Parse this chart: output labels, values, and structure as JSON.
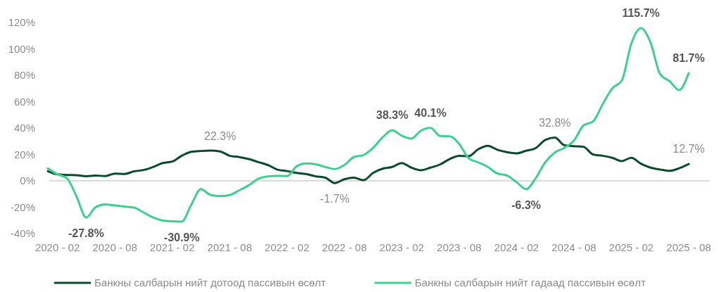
{
  "chart_data": {
    "type": "line",
    "categories": [
      null,
      "2020 - 02",
      null,
      null,
      null,
      null,
      null,
      "2020 - 08",
      null,
      null,
      null,
      null,
      null,
      "2021 - 02",
      null,
      null,
      null,
      null,
      null,
      "2021 - 08",
      null,
      null,
      null,
      null,
      null,
      "2022 - 02",
      null,
      null,
      null,
      null,
      null,
      "2022 - 08",
      null,
      null,
      null,
      null,
      null,
      "2023 - 02",
      null,
      null,
      null,
      null,
      null,
      "2023 - 08",
      null,
      null,
      null,
      null,
      null,
      "2024 - 02",
      null,
      null,
      null,
      null,
      null,
      "2024 - 08",
      null,
      null,
      null,
      null,
      null,
      "2025 - 02",
      null,
      null,
      null,
      null,
      null,
      "2025 - 08"
    ],
    "series": [
      {
        "name": "Банкны салбарын нийт дотоод пассивын өсөлт",
        "color": "#0b4a2c",
        "values": [
          7.3,
          4.9,
          4.4,
          4.3,
          3.5,
          4.0,
          3.6,
          5.5,
          5.2,
          7.2,
          8.2,
          10.5,
          13.5,
          14.6,
          19,
          22,
          22.6,
          22.9,
          22.3,
          19,
          18,
          16.5,
          14.2,
          12,
          8.5,
          7.4,
          6,
          5.2,
          3.4,
          2.4,
          -1.7,
          1.2,
          2.4,
          0.5,
          6,
          9.2,
          10.5,
          13.5,
          10,
          8,
          10,
          12.4,
          16.5,
          19,
          18.7,
          24,
          26.6,
          23.5,
          21.7,
          20.8,
          22.8,
          24.8,
          31,
          32.8,
          27,
          26.3,
          25.8,
          20,
          19,
          17.5,
          15,
          17.5,
          13,
          10,
          8.6,
          7.6,
          9.5,
          12.7
        ],
        "value_labels": [
          null,
          null,
          null,
          null,
          null,
          null,
          null,
          null,
          null,
          null,
          null,
          null,
          null,
          null,
          null,
          null,
          null,
          null,
          "22.3%",
          null,
          null,
          null,
          null,
          null,
          null,
          null,
          null,
          null,
          null,
          null,
          "-1.7%",
          null,
          null,
          null,
          null,
          null,
          null,
          null,
          null,
          null,
          null,
          null,
          null,
          null,
          null,
          null,
          null,
          null,
          null,
          null,
          null,
          null,
          null,
          "32.8%",
          null,
          null,
          null,
          null,
          null,
          null,
          null,
          null,
          null,
          null,
          null,
          null,
          null,
          "12.7%"
        ]
      },
      {
        "name": "Банкны салбарын нийт гадаад пассивын өсөлт",
        "color": "#3fcf8f",
        "values": [
          9.4,
          5,
          1.9,
          -12,
          -27.8,
          -19.9,
          -17.9,
          -18.7,
          -19.5,
          -20.3,
          -24,
          -27.8,
          -30.1,
          -30.7,
          -30.9,
          -18,
          -6.3,
          -10.7,
          -11.6,
          -10.8,
          -7.2,
          -3.4,
          1.5,
          3.4,
          3.8,
          3.6,
          11,
          13.2,
          12.5,
          10.5,
          8.9,
          12,
          18,
          19.5,
          25,
          33,
          38.3,
          34.2,
          32,
          38,
          40.1,
          34,
          33.8,
          28,
          17,
          14,
          10.5,
          5.5,
          4,
          -1,
          -6.3,
          2,
          14,
          21.5,
          25,
          30.5,
          42,
          45,
          58,
          70,
          76,
          104,
          115.7,
          105,
          81,
          75.5,
          68.8,
          81.7
        ],
        "value_labels": [
          null,
          null,
          null,
          null,
          "-27.8%",
          null,
          null,
          null,
          null,
          null,
          null,
          null,
          null,
          null,
          "-30.9%",
          null,
          null,
          null,
          null,
          null,
          null,
          null,
          null,
          null,
          null,
          null,
          null,
          null,
          null,
          null,
          null,
          null,
          null,
          null,
          null,
          null,
          "38.3%",
          null,
          null,
          null,
          "40.1%",
          null,
          null,
          null,
          null,
          null,
          null,
          null,
          null,
          null,
          "-6.3%",
          null,
          null,
          null,
          null,
          null,
          null,
          null,
          null,
          null,
          null,
          null,
          "115.7%",
          null,
          null,
          null,
          null,
          "81.7%"
        ]
      }
    ],
    "ylim": [
      -40,
      120
    ],
    "yticks": [
      {
        "value": -40,
        "label": "-40%"
      },
      {
        "value": -20,
        "label": "-20%"
      },
      {
        "value": 0,
        "label": "0%"
      },
      {
        "value": 20,
        "label": "20%"
      },
      {
        "value": 40,
        "label": "40%"
      },
      {
        "value": 60,
        "label": "60%"
      },
      {
        "value": 80,
        "label": "80%"
      },
      {
        "value": 100,
        "label": "100%"
      },
      {
        "value": 120,
        "label": "120%"
      }
    ],
    "legend": "bottom",
    "marker": "none",
    "line_style": "solid"
  }
}
